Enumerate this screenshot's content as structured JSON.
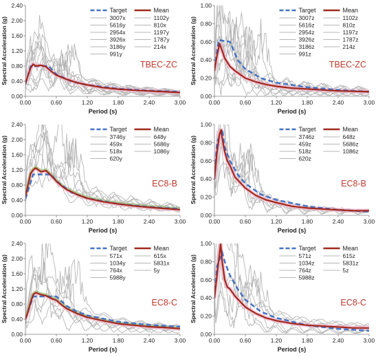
{
  "shared": {
    "xlabel": "Period (s)",
    "ylabel": "Spectral Acceleration (g)",
    "legend_target": "Target",
    "legend_mean": "Mean",
    "colors": {
      "target": "#4472c4",
      "mean": "#a0281c",
      "records": "#b5b5b5",
      "panel_label": "#c0392b",
      "axis": "#7f7f7f",
      "mean_halo_pink": "#f4b6cc",
      "mean_halo_green": "#8fc26a"
    }
  },
  "chart_data": [
    {
      "type": "line",
      "title": "",
      "panel_label": "TBEC-ZC",
      "xlabel": "Period (s)",
      "ylabel": "Spectral Acceleration (g)",
      "xlim": [
        0,
        3
      ],
      "ylim": [
        0,
        2.4
      ],
      "xticks": [
        "0.00",
        "0.60",
        "1.20",
        "1.80",
        "2.40",
        "3.00"
      ],
      "yticks": [
        "0.00",
        "0.40",
        "0.80",
        "1.20",
        "1.60",
        "2.00",
        "2.40"
      ],
      "grid": false,
      "legend_position": "top-right",
      "record_names": [
        "3007x",
        "1102y",
        "5616y",
        "810x",
        "2954x",
        "1197y",
        "3926x",
        "1787y",
        "3186y",
        "214x",
        "991y"
      ],
      "target": {
        "x": [
          0,
          0.1,
          0.45,
          0.6,
          0.9,
          1.2,
          1.8,
          2.4,
          3.0
        ],
        "y": [
          0.32,
          0.8,
          0.8,
          0.58,
          0.39,
          0.3,
          0.2,
          0.15,
          0.12
        ]
      },
      "mean": {
        "x": [
          0,
          0.05,
          0.1,
          0.15,
          0.2,
          0.3,
          0.4,
          0.5,
          0.6,
          0.8,
          1.0,
          1.2,
          1.5,
          1.8,
          2.1,
          2.4,
          2.7,
          3.0
        ],
        "y": [
          0.35,
          0.55,
          0.75,
          0.85,
          0.8,
          0.82,
          0.78,
          0.66,
          0.56,
          0.45,
          0.36,
          0.3,
          0.23,
          0.19,
          0.16,
          0.14,
          0.12,
          0.1
        ]
      },
      "records_scale": 0.8
    },
    {
      "type": "line",
      "title": "",
      "panel_label": "TBEC-ZC",
      "xlabel": "Period (s)",
      "ylabel": "Spectral Acceleration (g)",
      "xlim": [
        0,
        3
      ],
      "ylim": [
        0,
        1.0
      ],
      "xticks": [
        "0.00",
        "0.60",
        "1.20",
        "1.80",
        "2.40",
        "3.00"
      ],
      "yticks": [
        "0.00",
        "0.20",
        "0.40",
        "0.60",
        "0.80",
        "1.00"
      ],
      "grid": false,
      "legend_position": "top-right",
      "record_names": [
        "3007z",
        "1102z",
        "5616z",
        "810z",
        "2954z",
        "1197z",
        "3926z",
        "1787z",
        "3186z",
        "214z",
        "991z"
      ],
      "target": {
        "x": [
          0,
          0.08,
          0.3,
          0.45,
          0.6,
          0.9,
          1.2,
          1.8,
          2.4,
          3.0
        ],
        "y": [
          0.3,
          0.62,
          0.6,
          0.4,
          0.3,
          0.2,
          0.15,
          0.1,
          0.07,
          0.05
        ]
      },
      "mean": {
        "x": [
          0,
          0.05,
          0.1,
          0.15,
          0.2,
          0.3,
          0.4,
          0.5,
          0.6,
          0.8,
          1.0,
          1.2,
          1.5,
          1.8,
          2.1,
          2.4,
          2.7,
          3.0
        ],
        "y": [
          0.28,
          0.45,
          0.58,
          0.5,
          0.42,
          0.33,
          0.28,
          0.24,
          0.2,
          0.16,
          0.13,
          0.11,
          0.09,
          0.08,
          0.07,
          0.06,
          0.055,
          0.05
        ]
      },
      "records_scale": 0.6
    },
    {
      "type": "line",
      "title": "",
      "panel_label": "EC8-B",
      "xlabel": "Period (s)",
      "ylabel": "Spectral Acceleration (g)",
      "xlim": [
        0,
        3
      ],
      "ylim": [
        0,
        2.4
      ],
      "xticks": [
        "0.00",
        "0.60",
        "1.20",
        "1.80",
        "2.40",
        "3.00"
      ],
      "yticks": [
        "0.00",
        "0.40",
        "0.80",
        "1.20",
        "1.60",
        "2.00",
        "2.40"
      ],
      "grid": false,
      "legend_position": "top-right",
      "record_names": [
        "3746y",
        "648y",
        "459x",
        "5686y",
        "518x",
        "1086y",
        "620y"
      ],
      "target": {
        "x": [
          0,
          0.15,
          0.5,
          0.6,
          0.9,
          1.2,
          1.8,
          2.4,
          3.0
        ],
        "y": [
          0.43,
          1.08,
          1.08,
          0.9,
          0.6,
          0.45,
          0.3,
          0.22,
          0.17
        ]
      },
      "mean": {
        "x": [
          0,
          0.05,
          0.1,
          0.15,
          0.2,
          0.25,
          0.3,
          0.4,
          0.5,
          0.6,
          0.7,
          0.8,
          1.0,
          1.2,
          1.5,
          1.8,
          2.1,
          2.4,
          2.7,
          3.0
        ],
        "y": [
          0.5,
          0.8,
          1.1,
          1.2,
          1.25,
          1.2,
          1.15,
          1.18,
          1.05,
          0.9,
          0.78,
          0.68,
          0.55,
          0.45,
          0.36,
          0.3,
          0.25,
          0.21,
          0.18,
          0.15
        ]
      },
      "records_scale": 1.1
    },
    {
      "type": "line",
      "title": "",
      "panel_label": "EC8-B",
      "xlabel": "Period (s)",
      "ylabel": "Spectral Acceleration (g)",
      "xlim": [
        0,
        3
      ],
      "ylim": [
        0,
        1.0
      ],
      "xticks": [
        "0.00",
        "0.60",
        "1.20",
        "1.80",
        "2.40",
        "3.00"
      ],
      "yticks": [
        "0.00",
        "0.20",
        "0.40",
        "0.60",
        "0.80",
        "1.00"
      ],
      "grid": false,
      "legend_position": "top-right",
      "record_names": [
        "3746z",
        "648z",
        "459z",
        "5686z",
        "518z",
        "1086z",
        "620z"
      ],
      "target": {
        "x": [
          0,
          0.05,
          0.15,
          0.2,
          0.3,
          0.45,
          0.6,
          0.9,
          1.2,
          1.8,
          2.4,
          3.0
        ],
        "y": [
          0.4,
          0.8,
          0.95,
          0.75,
          0.6,
          0.45,
          0.35,
          0.23,
          0.17,
          0.1,
          0.06,
          0.04
        ]
      },
      "mean": {
        "x": [
          0,
          0.05,
          0.1,
          0.13,
          0.15,
          0.2,
          0.25,
          0.3,
          0.4,
          0.5,
          0.6,
          0.8,
          1.0,
          1.2,
          1.5,
          1.8,
          2.1,
          2.4,
          2.7,
          3.0
        ],
        "y": [
          0.4,
          0.7,
          0.9,
          0.94,
          0.85,
          0.7,
          0.6,
          0.55,
          0.42,
          0.36,
          0.3,
          0.22,
          0.17,
          0.14,
          0.1,
          0.08,
          0.07,
          0.06,
          0.05,
          0.05
        ]
      },
      "records_scale": 0.45
    },
    {
      "type": "line",
      "title": "",
      "panel_label": "EC8-C",
      "xlabel": "Period (s)",
      "ylabel": "Spectral Acceleration (g)",
      "xlim": [
        0,
        3
      ],
      "ylim": [
        0,
        2.4
      ],
      "xticks": [
        "0.00",
        "0.60",
        "1.20",
        "1.80",
        "2.40",
        "3.00"
      ],
      "yticks": [
        "0.00",
        "0.40",
        "0.80",
        "1.20",
        "1.60",
        "2.00",
        "2.40"
      ],
      "grid": false,
      "legend_position": "top-right",
      "record_names": [
        "571x",
        "615x",
        "1034y",
        "5831x",
        "764x",
        "5y",
        "5988y"
      ],
      "target": {
        "x": [
          0,
          0.15,
          0.6,
          0.8,
          1.0,
          1.2,
          1.8,
          2.4,
          3.0
        ],
        "y": [
          0.4,
          1.0,
          1.0,
          0.75,
          0.6,
          0.5,
          0.33,
          0.25,
          0.2
        ]
      },
      "mean": {
        "x": [
          0,
          0.05,
          0.1,
          0.15,
          0.2,
          0.3,
          0.4,
          0.5,
          0.6,
          0.7,
          0.8,
          1.0,
          1.2,
          1.5,
          1.8,
          2.1,
          2.4,
          2.7,
          3.0
        ],
        "y": [
          0.4,
          0.6,
          0.85,
          1.05,
          1.1,
          1.05,
          1.02,
          0.95,
          0.9,
          0.78,
          0.68,
          0.55,
          0.45,
          0.36,
          0.28,
          0.24,
          0.2,
          0.18,
          0.15
        ]
      },
      "records_scale": 1.2
    },
    {
      "type": "line",
      "title": "",
      "panel_label": "EC8-C",
      "xlabel": "Period (s)",
      "ylabel": "Spectral Acceleration (g)",
      "xlim": [
        0,
        3
      ],
      "ylim": [
        0,
        1.0
      ],
      "xticks": [
        "0.00",
        "0.60",
        "1.20",
        "1.80",
        "2.40",
        "3.00"
      ],
      "yticks": [
        "0.00",
        "0.20",
        "0.40",
        "0.60",
        "0.80",
        "1.00"
      ],
      "grid": false,
      "legend_position": "top-right",
      "record_names": [
        "571z",
        "615z",
        "1034z",
        "5831z",
        "764z",
        "5z",
        "5988z"
      ],
      "target": {
        "x": [
          0,
          0.05,
          0.15,
          0.2,
          0.3,
          0.45,
          0.6,
          0.9,
          1.2,
          1.8,
          2.4,
          3.0
        ],
        "y": [
          0.4,
          0.75,
          0.9,
          0.8,
          0.65,
          0.5,
          0.38,
          0.25,
          0.18,
          0.1,
          0.06,
          0.04
        ]
      },
      "mean": {
        "x": [
          0,
          0.05,
          0.1,
          0.12,
          0.15,
          0.2,
          0.25,
          0.3,
          0.4,
          0.5,
          0.6,
          0.8,
          1.0,
          1.2,
          1.5,
          1.8,
          2.1,
          2.4,
          2.7,
          3.0
        ],
        "y": [
          0.4,
          0.65,
          0.9,
          1.0,
          0.8,
          0.6,
          0.52,
          0.5,
          0.42,
          0.36,
          0.3,
          0.23,
          0.18,
          0.15,
          0.12,
          0.1,
          0.09,
          0.08,
          0.07,
          0.07
        ]
      },
      "records_scale": 0.5
    }
  ]
}
